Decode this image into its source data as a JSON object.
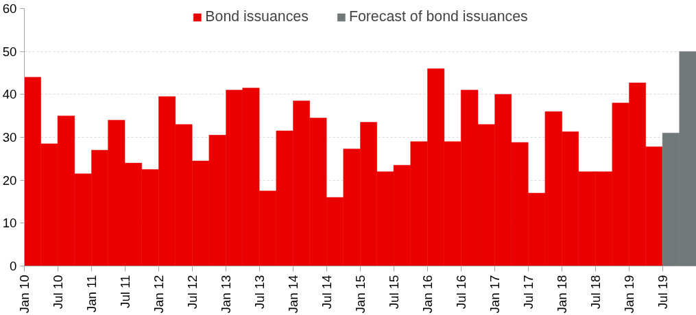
{
  "chart_data": {
    "type": "bar",
    "legend": "top",
    "grid": "y",
    "series": [
      {
        "name": "Bond issuances",
        "color": "#eb0000",
        "x": [
          "2010-01",
          "2010-04",
          "2010-07",
          "2010-10",
          "2011-01",
          "2011-04",
          "2011-07",
          "2011-10",
          "2012-01",
          "2012-04",
          "2012-07",
          "2012-10",
          "2013-01",
          "2013-04",
          "2013-07",
          "2013-10",
          "2014-01",
          "2014-04",
          "2014-07",
          "2014-10",
          "2015-01",
          "2015-04",
          "2015-07",
          "2015-10",
          "2016-01",
          "2016-04",
          "2016-07",
          "2016-10",
          "2017-01",
          "2017-04",
          "2017-07",
          "2017-10",
          "2018-01",
          "2018-04",
          "2018-07",
          "2018-10",
          "2019-01",
          "2019-04"
        ],
        "values": [
          44,
          28.5,
          35,
          21.5,
          27,
          34,
          24,
          22.5,
          39.5,
          33,
          24.5,
          30.5,
          41,
          41.5,
          17.5,
          31.5,
          38.5,
          34.5,
          16,
          27.3,
          33.5,
          22,
          23.5,
          29,
          46,
          29,
          41,
          33,
          40,
          28.8,
          17,
          36,
          31.3,
          22,
          22,
          38,
          42.7,
          27.8
        ]
      },
      {
        "name": "Forecast of bond issuances",
        "color": "#717879",
        "x": [
          "2019-07",
          "2019-10"
        ],
        "values": [
          31,
          50
        ]
      }
    ],
    "xlim": [
      "2010-01",
      "2020-01"
    ],
    "xticks": [
      {
        "value": "2010-01",
        "label": "Jan 10"
      },
      {
        "value": "2010-07",
        "label": "Jul 10"
      },
      {
        "value": "2011-01",
        "label": "Jan 11"
      },
      {
        "value": "2011-07",
        "label": "Jul 11"
      },
      {
        "value": "2012-01",
        "label": "Jan 12"
      },
      {
        "value": "2012-07",
        "label": "Jul 12"
      },
      {
        "value": "2013-01",
        "label": "Jan 13"
      },
      {
        "value": "2013-07",
        "label": "Jul 13"
      },
      {
        "value": "2014-01",
        "label": "Jan 14"
      },
      {
        "value": "2014-07",
        "label": "Jul 14"
      },
      {
        "value": "2015-01",
        "label": "Jan 15"
      },
      {
        "value": "2015-07",
        "label": "Jul 15"
      },
      {
        "value": "2016-01",
        "label": "Jan 16"
      },
      {
        "value": "2016-07",
        "label": "Jul 16"
      },
      {
        "value": "2017-01",
        "label": "Jan 17"
      },
      {
        "value": "2017-07",
        "label": "Jul 17"
      },
      {
        "value": "2018-01",
        "label": "Jan 18"
      },
      {
        "value": "2018-07",
        "label": "Jul 18"
      },
      {
        "value": "2019-01",
        "label": "Jan 19"
      },
      {
        "value": "2019-07",
        "label": "Jul 19"
      }
    ],
    "ylim": [
      0,
      60
    ],
    "yticks": [
      0,
      10,
      20,
      30,
      40,
      50,
      60
    ]
  }
}
